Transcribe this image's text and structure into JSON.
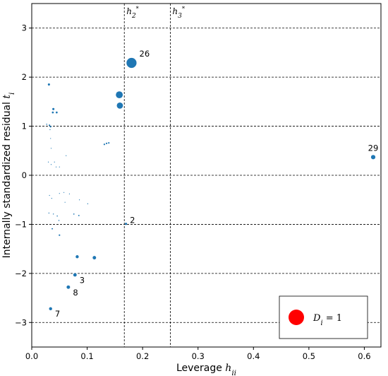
{
  "chart_data": {
    "type": "scatter",
    "xlabel": "Leverage h_ii",
    "ylabel": "Internally standardized residual t_i",
    "xlim": [
      0.0,
      0.63
    ],
    "ylim": [
      -3.5,
      3.5
    ],
    "xticks": [
      "0.0",
      "0.1",
      "0.2",
      "0.3",
      "0.4",
      "0.5",
      "0.6"
    ],
    "yticks": [
      "−3",
      "−2",
      "−1",
      "0",
      "1",
      "2",
      "3"
    ],
    "grid": false,
    "point_color": "#1f77b4",
    "reference_lines": {
      "horizontal": [
        -3,
        -2,
        -1,
        0,
        1,
        2,
        3
      ],
      "vertical": [
        {
          "x": 0.167,
          "label": "h2*"
        },
        {
          "x": 0.25,
          "label": "h3*"
        }
      ]
    },
    "points": [
      {
        "x": 0.18,
        "y": 2.29,
        "cooks_d": 0.42,
        "label": "26"
      },
      {
        "x": 0.158,
        "y": 1.64,
        "cooks_d": 0.2,
        "label": ""
      },
      {
        "x": 0.159,
        "y": 1.42,
        "cooks_d": 0.16,
        "label": ""
      },
      {
        "x": 0.031,
        "y": 1.85,
        "cooks_d": 0.02,
        "label": ""
      },
      {
        "x": 0.039,
        "y": 1.35,
        "cooks_d": 0.02,
        "label": ""
      },
      {
        "x": 0.038,
        "y": 1.28,
        "cooks_d": 0.015,
        "label": ""
      },
      {
        "x": 0.045,
        "y": 1.28,
        "cooks_d": 0.015,
        "label": ""
      },
      {
        "x": 0.027,
        "y": 1.04,
        "cooks_d": 0.005,
        "label": ""
      },
      {
        "x": 0.032,
        "y": 1.02,
        "cooks_d": 0.01,
        "label": ""
      },
      {
        "x": 0.034,
        "y": 0.99,
        "cooks_d": 0.01,
        "label": ""
      },
      {
        "x": 0.033,
        "y": 0.93,
        "cooks_d": 0.004,
        "label": ""
      },
      {
        "x": 0.034,
        "y": 0.75,
        "cooks_d": 0.003,
        "label": ""
      },
      {
        "x": 0.035,
        "y": 0.55,
        "cooks_d": 0.002,
        "label": ""
      },
      {
        "x": 0.131,
        "y": 0.63,
        "cooks_d": 0.01,
        "label": ""
      },
      {
        "x": 0.135,
        "y": 0.65,
        "cooks_d": 0.01,
        "label": ""
      },
      {
        "x": 0.139,
        "y": 0.66,
        "cooks_d": 0.01,
        "label": ""
      },
      {
        "x": 0.062,
        "y": 0.4,
        "cooks_d": 0.002,
        "label": ""
      },
      {
        "x": 0.616,
        "y": 0.37,
        "cooks_d": 0.08,
        "label": "29"
      },
      {
        "x": 0.03,
        "y": 0.27,
        "cooks_d": 0.001,
        "label": ""
      },
      {
        "x": 0.035,
        "y": 0.22,
        "cooks_d": 0.001,
        "label": ""
      },
      {
        "x": 0.041,
        "y": 0.27,
        "cooks_d": 0.001,
        "label": ""
      },
      {
        "x": 0.044,
        "y": 0.17,
        "cooks_d": 0.001,
        "label": ""
      },
      {
        "x": 0.05,
        "y": 0.17,
        "cooks_d": 0.001,
        "label": ""
      },
      {
        "x": 0.032,
        "y": -0.41,
        "cooks_d": 0.001,
        "label": ""
      },
      {
        "x": 0.036,
        "y": -0.47,
        "cooks_d": 0.001,
        "label": ""
      },
      {
        "x": 0.05,
        "y": -0.37,
        "cooks_d": 0.001,
        "label": ""
      },
      {
        "x": 0.058,
        "y": -0.35,
        "cooks_d": 0.001,
        "label": ""
      },
      {
        "x": 0.068,
        "y": -0.38,
        "cooks_d": 0.001,
        "label": ""
      },
      {
        "x": 0.06,
        "y": -0.55,
        "cooks_d": 0.002,
        "label": ""
      },
      {
        "x": 0.086,
        "y": -0.5,
        "cooks_d": 0.003,
        "label": ""
      },
      {
        "x": 0.101,
        "y": -0.58,
        "cooks_d": 0.004,
        "label": ""
      },
      {
        "x": 0.031,
        "y": -0.77,
        "cooks_d": 0.004,
        "label": ""
      },
      {
        "x": 0.039,
        "y": -0.79,
        "cooks_d": 0.004,
        "label": ""
      },
      {
        "x": 0.046,
        "y": -0.83,
        "cooks_d": 0.005,
        "label": ""
      },
      {
        "x": 0.049,
        "y": -0.92,
        "cooks_d": 0.005,
        "label": ""
      },
      {
        "x": 0.076,
        "y": -0.79,
        "cooks_d": 0.006,
        "label": ""
      },
      {
        "x": 0.085,
        "y": -0.82,
        "cooks_d": 0.007,
        "label": ""
      },
      {
        "x": 0.037,
        "y": -1.09,
        "cooks_d": 0.008,
        "label": ""
      },
      {
        "x": 0.05,
        "y": -1.22,
        "cooks_d": 0.01,
        "label": ""
      },
      {
        "x": 0.17,
        "y": -0.99,
        "cooks_d": 0.02,
        "label": "2"
      },
      {
        "x": 0.082,
        "y": -1.66,
        "cooks_d": 0.04,
        "label": ""
      },
      {
        "x": 0.113,
        "y": -1.68,
        "cooks_d": 0.05,
        "label": ""
      },
      {
        "x": 0.078,
        "y": -2.03,
        "cooks_d": 0.05,
        "label": "3"
      },
      {
        "x": 0.066,
        "y": -2.28,
        "cooks_d": 0.05,
        "label": "8"
      },
      {
        "x": 0.034,
        "y": -2.72,
        "cooks_d": 0.04,
        "label": "7"
      }
    ],
    "legend": {
      "placement": "lower-right",
      "label": "D_i = 1",
      "marker_color": "#ff0000"
    }
  }
}
